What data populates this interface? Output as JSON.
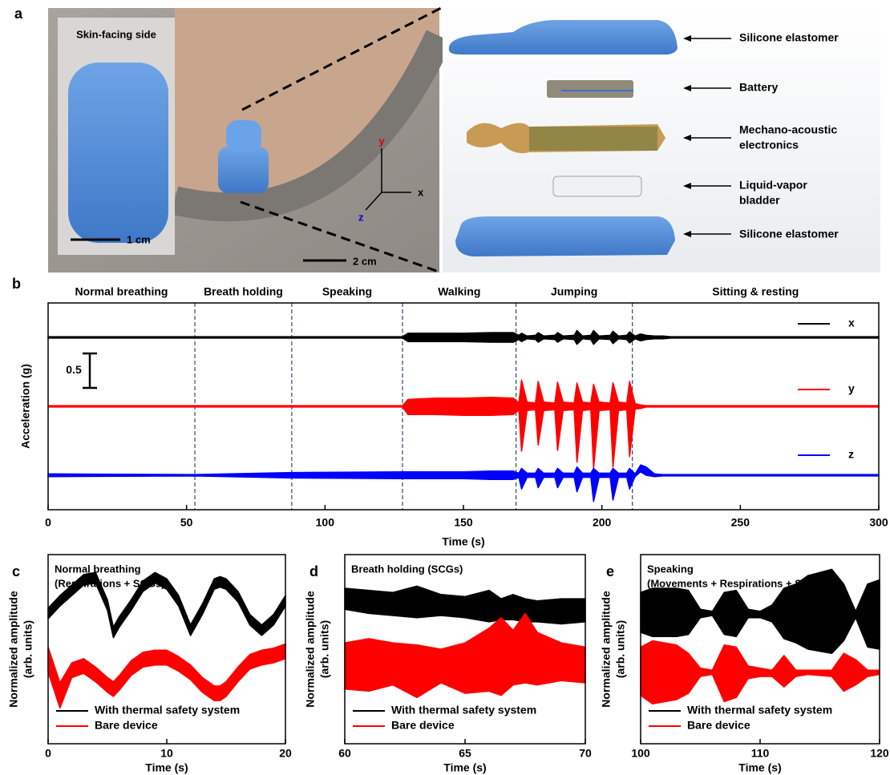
{
  "panel_a": {
    "label": "a",
    "inset_title": "Skin-facing side",
    "inset_scale": "1 cm",
    "photo_scale": "2 cm",
    "axes": [
      "x",
      "y",
      "z"
    ],
    "layers": [
      [
        "Silicone elastomer"
      ],
      [
        "Battery"
      ],
      [
        "Mechano-acoustic",
        "electronics"
      ],
      [
        "Liquid-vapor",
        "bladder"
      ],
      [
        "Silicone elastomer"
      ]
    ]
  },
  "chart_data": [
    {
      "type": "line",
      "label": "b",
      "xlabel": "Time (s)",
      "ylabel": "Acceleration (g)",
      "xlim": [
        0,
        300
      ],
      "xticks": [
        0,
        50,
        100,
        150,
        200,
        250,
        300
      ],
      "ylim": [
        0,
        3
      ],
      "scale_bar": 0.5,
      "phases": {
        "boundaries": [
          53,
          88,
          128,
          169,
          211
        ],
        "names": [
          "Normal breathing",
          "Breath holding",
          "Speaking",
          "Walking",
          "Jumping",
          "Sitting & resting"
        ]
      },
      "series": [
        {
          "name": "x",
          "color": "#000000",
          "x": [
            0,
            53,
            88,
            128,
            130,
            140,
            150,
            160,
            168,
            170,
            171,
            173,
            176,
            177,
            179,
            183,
            184,
            186,
            190,
            191,
            193,
            196,
            197,
            199,
            203,
            204,
            206,
            209,
            210,
            212,
            214,
            216,
            219,
            222,
            225,
            300
          ],
          "upper": [
            2.51,
            2.51,
            2.51,
            2.51,
            2.56,
            2.56,
            2.56,
            2.57,
            2.57,
            2.53,
            2.56,
            2.52,
            2.53,
            2.57,
            2.52,
            2.53,
            2.57,
            2.52,
            2.53,
            2.6,
            2.52,
            2.53,
            2.6,
            2.52,
            2.53,
            2.59,
            2.52,
            2.53,
            2.58,
            2.52,
            2.55,
            2.53,
            2.52,
            2.52,
            2.51,
            2.51
          ],
          "lower": [
            2.49,
            2.49,
            2.49,
            2.49,
            2.44,
            2.44,
            2.44,
            2.43,
            2.43,
            2.47,
            2.44,
            2.48,
            2.47,
            2.43,
            2.48,
            2.47,
            2.43,
            2.48,
            2.47,
            2.4,
            2.48,
            2.47,
            2.4,
            2.48,
            2.47,
            2.41,
            2.48,
            2.47,
            2.42,
            2.48,
            2.45,
            2.47,
            2.48,
            2.48,
            2.49,
            2.49
          ]
        },
        {
          "name": "y",
          "color": "#ff0000",
          "x": [
            0,
            53,
            88,
            128,
            130,
            140,
            150,
            160,
            168,
            170,
            171,
            173,
            176,
            177,
            179,
            183,
            184,
            186,
            190,
            191,
            193,
            196,
            197,
            199,
            203,
            204,
            206,
            209,
            210,
            212,
            214,
            216,
            219,
            222,
            225,
            300
          ],
          "upper": [
            1.51,
            1.51,
            1.51,
            1.51,
            1.6,
            1.62,
            1.62,
            1.63,
            1.62,
            1.55,
            1.88,
            1.56,
            1.55,
            1.86,
            1.56,
            1.55,
            1.85,
            1.56,
            1.55,
            1.84,
            1.56,
            1.55,
            1.82,
            1.56,
            1.55,
            1.84,
            1.56,
            1.55,
            1.86,
            1.54,
            1.52,
            1.51,
            1.51,
            1.51,
            1.51,
            1.51
          ],
          "lower": [
            1.49,
            1.49,
            1.49,
            1.49,
            1.38,
            1.38,
            1.37,
            1.37,
            1.38,
            1.45,
            0.85,
            1.44,
            1.45,
            0.94,
            1.44,
            1.45,
            0.86,
            1.44,
            1.45,
            0.69,
            1.44,
            1.45,
            0.6,
            1.44,
            1.45,
            0.62,
            1.44,
            1.45,
            0.77,
            1.46,
            1.47,
            1.49,
            1.49,
            1.49,
            1.49,
            1.49
          ]
        },
        {
          "name": "z",
          "color": "#0000ff",
          "x": [
            0,
            53,
            88,
            128,
            130,
            140,
            150,
            160,
            168,
            170,
            171,
            173,
            176,
            177,
            179,
            183,
            184,
            186,
            190,
            191,
            193,
            196,
            197,
            199,
            203,
            204,
            206,
            209,
            210,
            212,
            214,
            216,
            219,
            222,
            225,
            300
          ],
          "upper": [
            0.52,
            0.51,
            0.54,
            0.55,
            0.55,
            0.55,
            0.55,
            0.56,
            0.56,
            0.53,
            0.6,
            0.53,
            0.53,
            0.6,
            0.53,
            0.53,
            0.6,
            0.53,
            0.53,
            0.62,
            0.53,
            0.53,
            0.6,
            0.53,
            0.53,
            0.6,
            0.53,
            0.53,
            0.6,
            0.52,
            0.65,
            0.62,
            0.52,
            0.51,
            0.51,
            0.51
          ],
          "lower": [
            0.48,
            0.49,
            0.46,
            0.45,
            0.45,
            0.45,
            0.45,
            0.44,
            0.44,
            0.47,
            0.3,
            0.47,
            0.47,
            0.32,
            0.47,
            0.47,
            0.32,
            0.47,
            0.47,
            0.26,
            0.47,
            0.47,
            0.12,
            0.47,
            0.47,
            0.14,
            0.47,
            0.47,
            0.3,
            0.48,
            0.55,
            0.5,
            0.48,
            0.49,
            0.49,
            0.49
          ]
        }
      ]
    },
    {
      "type": "line",
      "label": "c",
      "title": [
        "Normal breathing",
        "(Respirations + SCGs)"
      ],
      "xlabel": "Time (s)",
      "ylabel": [
        "Normalized amplitude",
        "(arb. units)"
      ],
      "xlim": [
        0,
        20
      ],
      "xticks": [
        0,
        10,
        20
      ],
      "ylim": [
        1,
        10
      ],
      "series": [
        {
          "name": "With thermal safety system",
          "color": "#000000",
          "x": [
            0,
            1,
            2,
            3,
            4,
            5,
            5.5,
            6,
            7,
            8,
            9,
            10,
            11,
            12,
            13,
            14,
            14.5,
            15,
            16,
            17,
            18,
            19,
            20
          ],
          "upper": [
            7.45,
            8.05,
            8.55,
            9.05,
            9.15,
            7.85,
            6.55,
            7.05,
            7.85,
            8.75,
            9.15,
            8.85,
            8.05,
            6.65,
            7.65,
            8.85,
            8.95,
            8.85,
            8.25,
            7.15,
            6.65,
            7.15,
            8.05
          ],
          "lower": [
            6.95,
            7.55,
            8.05,
            8.55,
            8.65,
            7.35,
            6.05,
            6.55,
            7.35,
            8.25,
            8.65,
            8.35,
            7.55,
            6.15,
            7.15,
            8.35,
            8.45,
            8.35,
            7.75,
            6.65,
            6.15,
            6.65,
            7.55
          ]
        },
        {
          "name": "Bare device",
          "color": "#ff0000",
          "x": [
            0,
            1,
            2,
            3,
            4,
            5,
            5.5,
            6,
            7,
            8,
            9,
            10,
            11,
            12,
            13,
            14,
            14.5,
            15,
            16,
            17,
            18,
            19,
            20
          ],
          "upper": [
            5.6,
            3.9,
            4.85,
            5.05,
            4.65,
            4.15,
            3.95,
            4.25,
            4.95,
            5.35,
            5.45,
            5.45,
            5.15,
            4.75,
            4.15,
            3.75,
            3.75,
            3.95,
            4.65,
            5.25,
            5.45,
            5.55,
            5.75
          ],
          "lower": [
            4.4,
            2.7,
            4.15,
            4.35,
            3.95,
            3.45,
            3.25,
            3.55,
            4.25,
            4.65,
            4.75,
            4.75,
            4.45,
            4.05,
            3.45,
            3.05,
            3.05,
            3.25,
            3.95,
            4.55,
            4.75,
            4.85,
            5.05
          ]
        }
      ]
    },
    {
      "type": "line",
      "label": "d",
      "title": [
        "Breath holding (SCGs)"
      ],
      "xlabel": "Time (s)",
      "ylabel": [
        "Normalized amplitude",
        "(arb. units)"
      ],
      "xlim": [
        60,
        70
      ],
      "xticks": [
        60,
        65,
        70
      ],
      "ylim": [
        1,
        10
      ],
      "series": [
        {
          "name": "With thermal safety system",
          "color": "#000000",
          "x": [
            60,
            61,
            62,
            63,
            64,
            65,
            66,
            66.5,
            67,
            67.5,
            68,
            69,
            70
          ],
          "upper": [
            8.4,
            8.3,
            8.2,
            8.5,
            8.1,
            8.0,
            8.3,
            7.9,
            8.1,
            7.9,
            7.8,
            7.9,
            7.9
          ],
          "lower": [
            7.4,
            7.2,
            7.1,
            7.0,
            7.1,
            7.0,
            6.8,
            6.9,
            6.9,
            6.8,
            6.8,
            6.7,
            6.8
          ]
        },
        {
          "name": "Bare device",
          "color": "#ff0000",
          "x": [
            60,
            61,
            62,
            63,
            64,
            65,
            66,
            66.5,
            67,
            67.5,
            68,
            69,
            70
          ],
          "upper": [
            5.8,
            6.0,
            5.8,
            5.7,
            5.5,
            5.8,
            6.5,
            7.0,
            6.4,
            7.2,
            6.3,
            5.8,
            5.6
          ],
          "lower": [
            3.6,
            3.5,
            3.8,
            3.2,
            3.9,
            3.4,
            3.5,
            3.3,
            3.8,
            3.9,
            3.8,
            4.0,
            3.9
          ]
        }
      ]
    },
    {
      "type": "line",
      "label": "e",
      "title": [
        "Speaking",
        "(Movements + Respirations + SCGs)"
      ],
      "xlabel": "Time (s)",
      "ylabel": [
        "Normalized amplitude",
        "(arb. units)"
      ],
      "xlim": [
        100,
        120
      ],
      "xticks": [
        100,
        110,
        120
      ],
      "ylim": [
        1,
        10
      ],
      "series": [
        {
          "name": "With thermal safety system",
          "color": "#000000",
          "x": [
            100,
            101,
            103,
            104,
            105,
            106,
            107,
            108,
            109,
            110,
            111,
            112,
            113,
            114,
            116,
            117,
            118,
            119,
            120
          ],
          "upper": [
            8.2,
            8.4,
            8.4,
            8.3,
            7.4,
            7.3,
            8.2,
            8.3,
            7.4,
            7.3,
            7.6,
            8.4,
            8.6,
            9.0,
            9.3,
            8.6,
            7.3,
            8.6,
            8.8
          ],
          "lower": [
            6.3,
            6.1,
            6.1,
            6.2,
            7.0,
            7.1,
            6.2,
            6.1,
            7.0,
            7.0,
            6.8,
            6.0,
            5.8,
            5.5,
            5.3,
            5.9,
            7.0,
            5.6,
            5.5
          ]
        },
        {
          "name": "Bare device",
          "color": "#ff0000",
          "x": [
            100,
            101,
            103,
            104,
            105,
            106,
            107,
            108,
            109,
            110,
            111,
            112,
            113,
            114,
            116,
            117,
            118,
            119,
            120
          ],
          "upper": [
            5.6,
            5.9,
            5.7,
            5.3,
            4.6,
            4.5,
            5.7,
            5.6,
            4.7,
            4.6,
            4.5,
            5.2,
            4.5,
            4.5,
            4.5,
            5.3,
            5.0,
            4.5,
            4.5
          ],
          "lower": [
            3.3,
            2.9,
            3.1,
            3.4,
            4.2,
            4.3,
            3.0,
            3.2,
            4.1,
            4.2,
            4.2,
            3.7,
            4.2,
            4.3,
            4.2,
            3.5,
            3.8,
            4.2,
            4.3
          ]
        }
      ]
    }
  ]
}
